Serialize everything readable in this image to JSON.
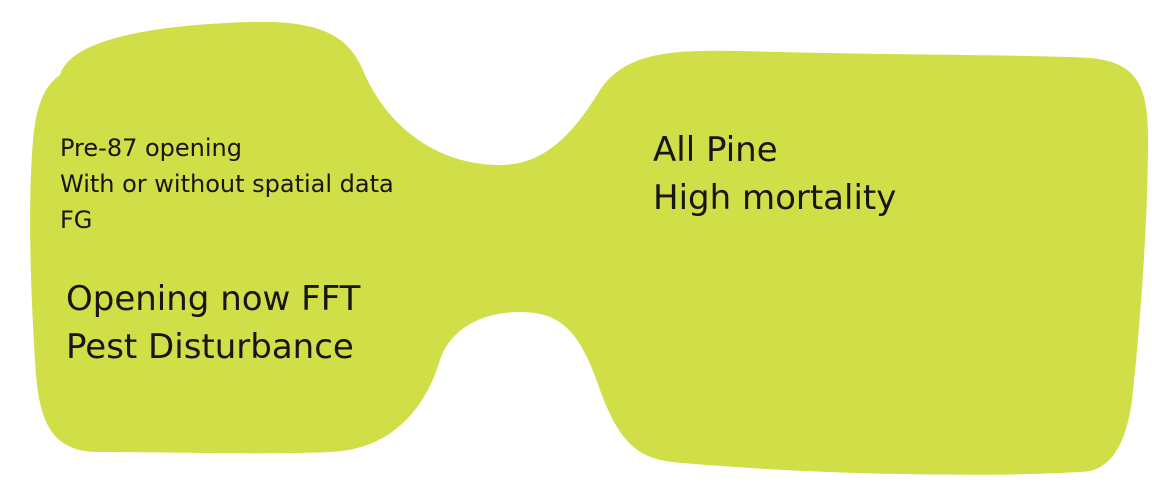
{
  "colors": {
    "shape_fill": "#d0df47",
    "text": "#161616",
    "background": "#ffffff"
  },
  "left": {
    "small_lines": [
      "Pre-87 opening",
      "With or without spatial data",
      "FG"
    ],
    "large_lines": [
      "Opening now FFT",
      "Pest Disturbance"
    ]
  },
  "right": {
    "lines": [
      "All Pine",
      "High mortality"
    ]
  }
}
